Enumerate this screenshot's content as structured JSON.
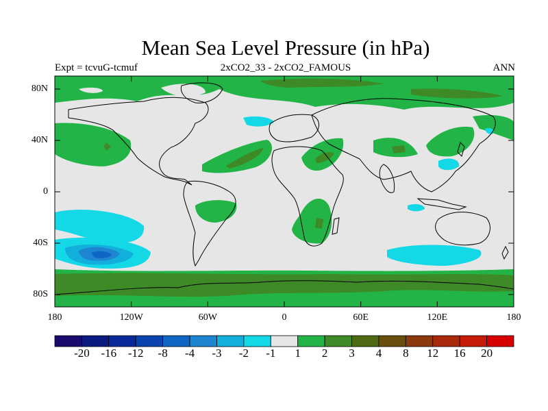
{
  "title": "Mean Sea Level Pressure (in hPa)",
  "subtitle_left": "Expt = tcvuG-tcmuf",
  "subtitle_center": "2xCO2_33 - 2xCO2_FAMOUS",
  "subtitle_right": "ANN",
  "y_tick_labels": [
    "80N",
    "40N",
    "0",
    "40S",
    "80S"
  ],
  "x_tick_labels": [
    "180",
    "120W",
    "60W",
    "0",
    "60E",
    "120E",
    "180"
  ],
  "colorbar": {
    "labels": [
      "-20",
      "-16",
      "-12",
      "-8",
      "-4",
      "-3",
      "-2",
      "-1",
      "1",
      "2",
      "3",
      "4",
      "8",
      "12",
      "16",
      "20"
    ],
    "colors": [
      "#1a0a6e",
      "#0a1a80",
      "#0a2a9a",
      "#0a44b0",
      "#1066c4",
      "#1e86d0",
      "#12aedc",
      "#14d8e6",
      "#e6e6e6",
      "#22b446",
      "#3e8a26",
      "#4e6a12",
      "#6a4e0e",
      "#8a3a0c",
      "#a82a0a",
      "#c81a08",
      "#d80000"
    ]
  },
  "map": {
    "lon_range": [
      -180,
      180
    ],
    "lat_range": [
      -90,
      90
    ],
    "background_color": "#e6e6e6"
  }
}
